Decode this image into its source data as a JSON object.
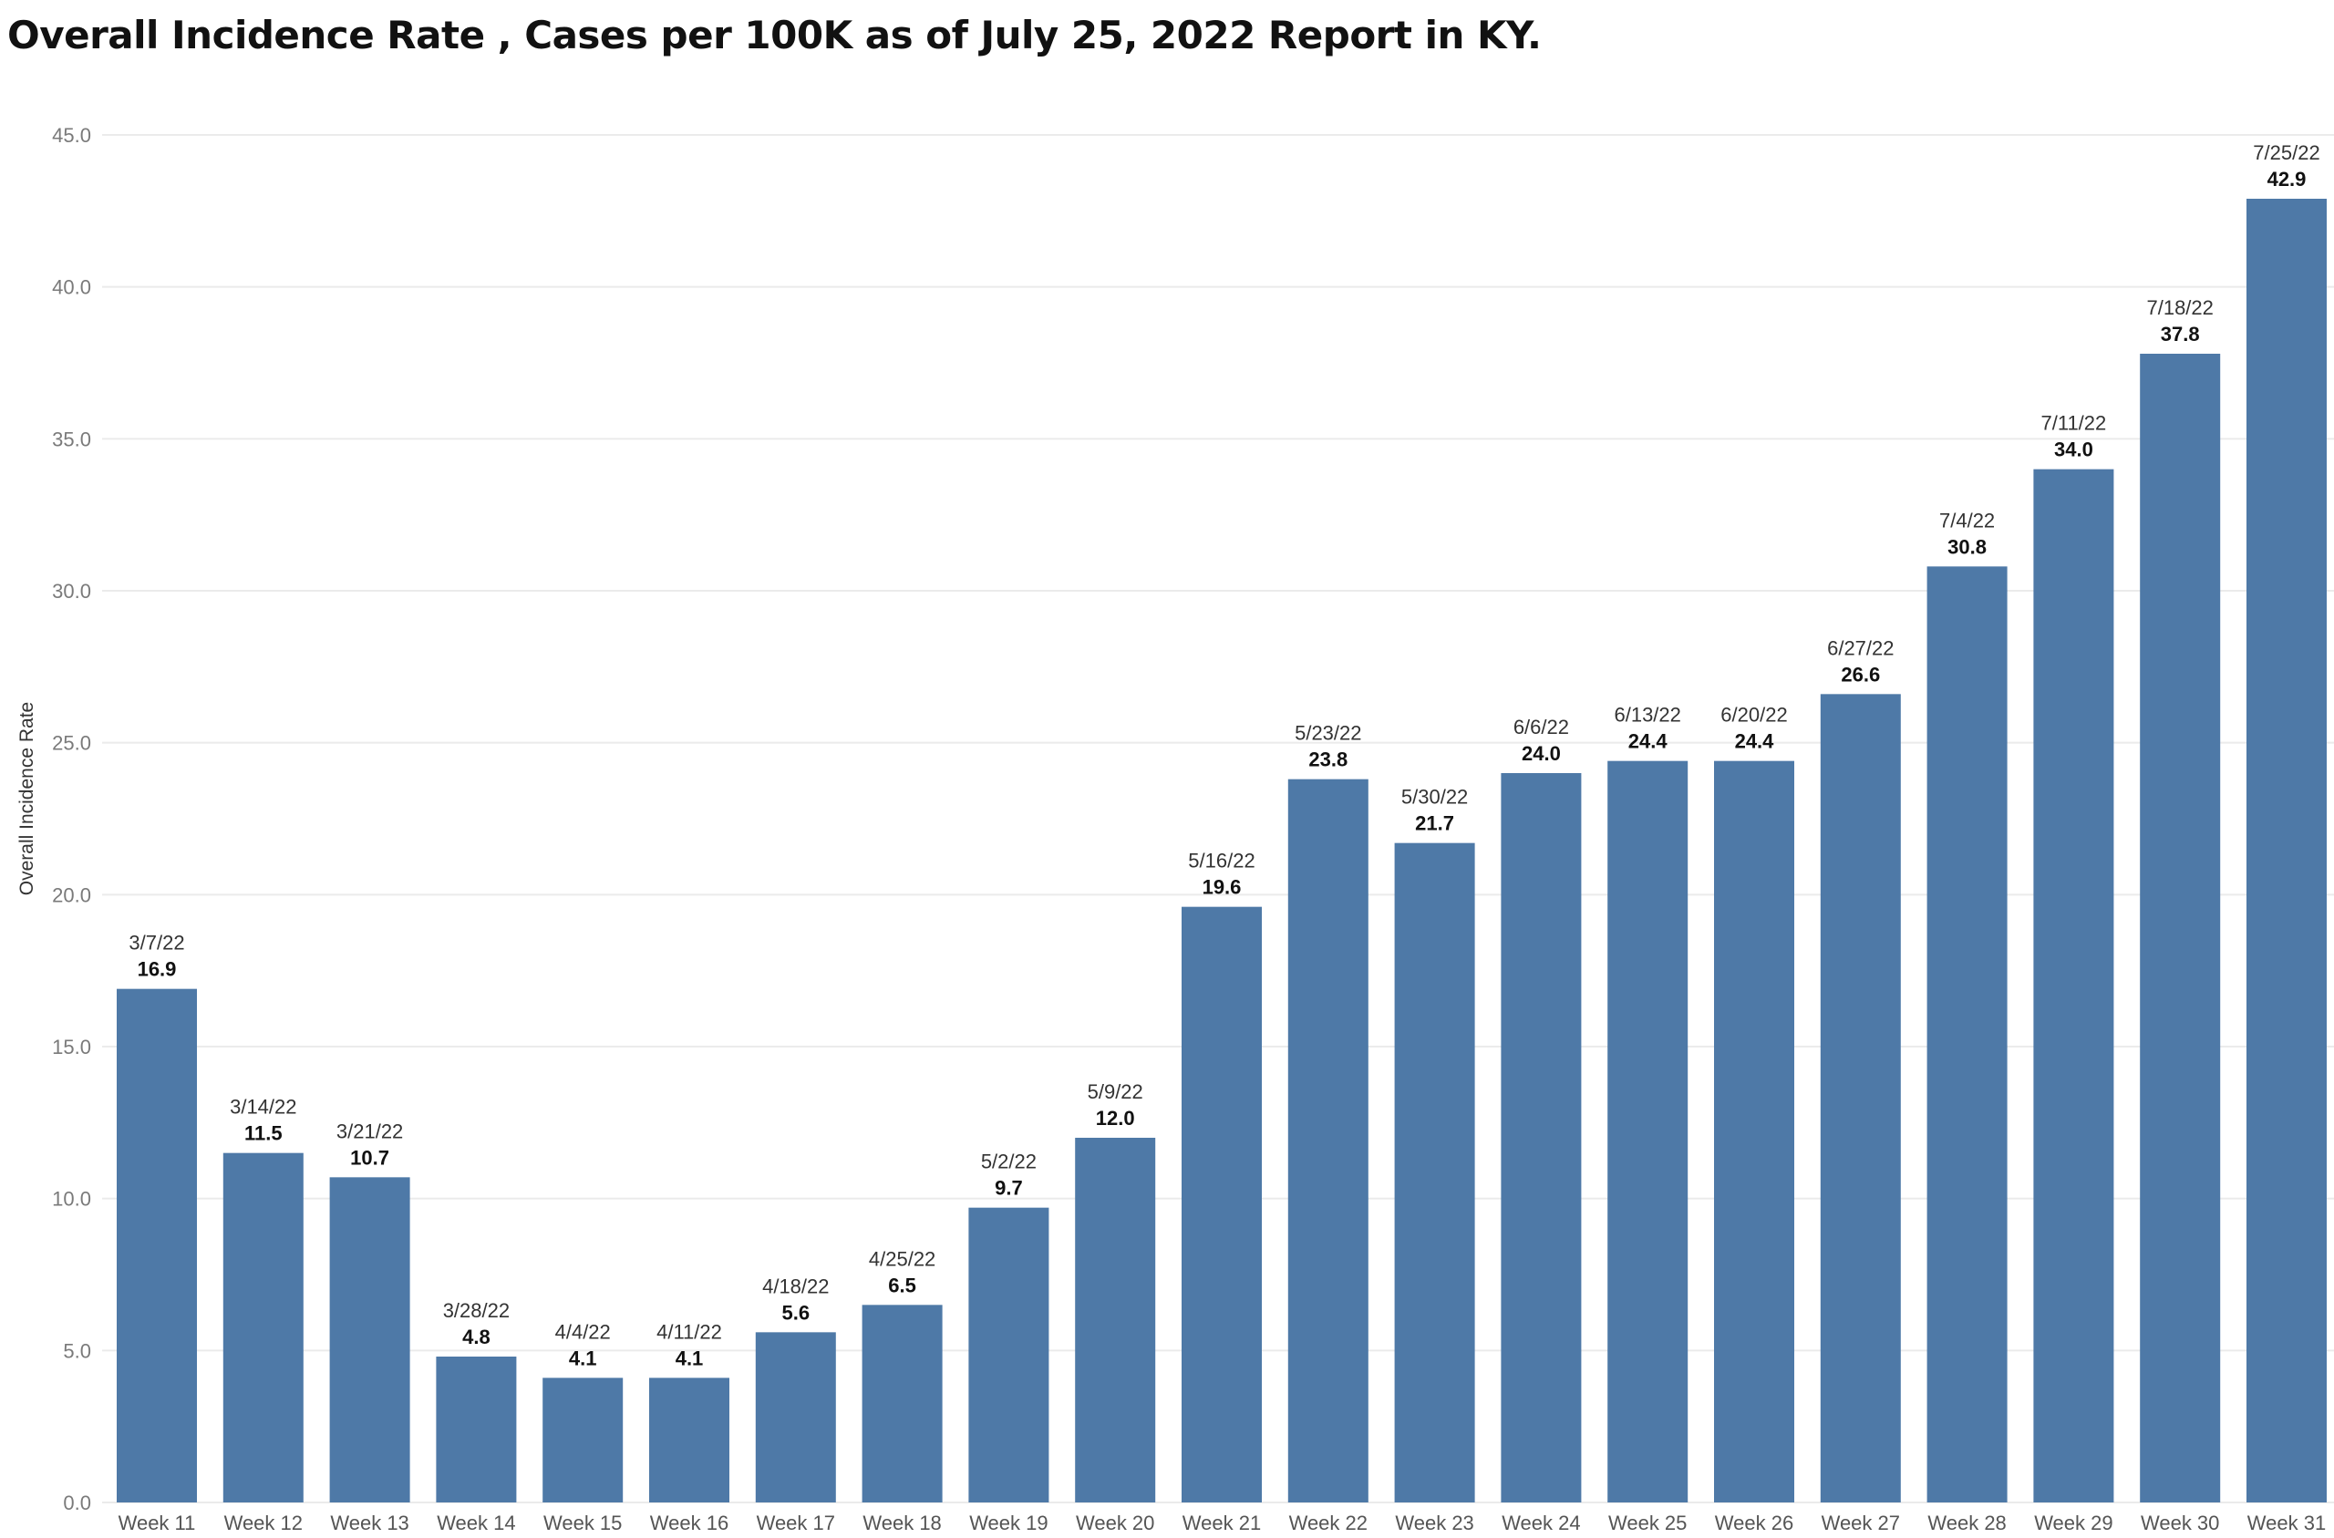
{
  "chart_data": {
    "type": "bar",
    "title": "Overall Incidence Rate , Cases per 100K as of July 25, 2022 Report in KY.",
    "xlabel": "",
    "ylabel": "Overall Incidence Rate",
    "ylim": [
      0,
      45
    ],
    "yticks": [
      "0.0",
      "5.0",
      "10.0",
      "15.0",
      "20.0",
      "25.0",
      "30.0",
      "35.0",
      "40.0",
      "45.0"
    ],
    "grid": true,
    "bar_color": "#4e79a7",
    "categories": [
      "Week 11",
      "Week 12",
      "Week 13",
      "Week 14",
      "Week 15",
      "Week 16",
      "Week 17",
      "Week 18",
      "Week 19",
      "Week 20",
      "Week 21",
      "Week 22",
      "Week 23",
      "Week 24",
      "Week 25",
      "Week 26",
      "Week 27",
      "Week 28",
      "Week 29",
      "Week 30",
      "Week 31"
    ],
    "dates": [
      "3/7/22",
      "3/14/22",
      "3/21/22",
      "3/28/22",
      "4/4/22",
      "4/11/22",
      "4/18/22",
      "4/25/22",
      "5/2/22",
      "5/9/22",
      "5/16/22",
      "5/23/22",
      "5/30/22",
      "6/6/22",
      "6/13/22",
      "6/20/22",
      "6/27/22",
      "7/4/22",
      "7/11/22",
      "7/18/22",
      "7/25/22"
    ],
    "values": [
      16.9,
      11.5,
      10.7,
      4.8,
      4.1,
      4.1,
      5.6,
      6.5,
      9.7,
      12.0,
      19.6,
      23.8,
      21.7,
      24.0,
      24.4,
      24.4,
      26.6,
      30.8,
      34.0,
      37.8,
      42.9
    ],
    "value_labels": [
      "16.9",
      "11.5",
      "10.7",
      "4.8",
      "4.1",
      "4.1",
      "5.6",
      "6.5",
      "9.7",
      "12.0",
      "19.6",
      "23.8",
      "21.7",
      "24.0",
      "24.4",
      "24.4",
      "26.6",
      "30.8",
      "34.0",
      "37.8",
      "42.9"
    ]
  }
}
